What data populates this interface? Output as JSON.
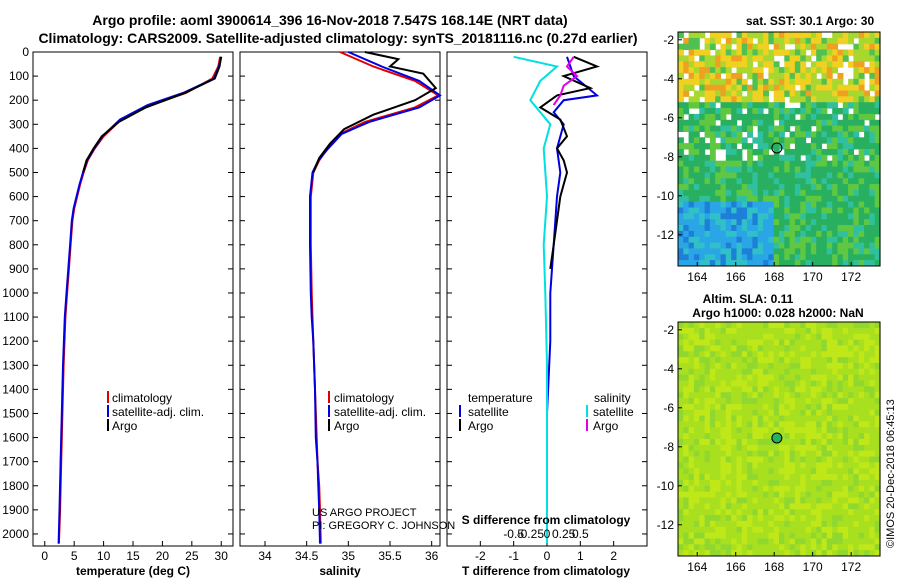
{
  "header": {
    "title_line1": "Argo profile: aoml 3900614_396 16-Nov-2018 7.547S 168.14E (NRT data)",
    "title_line2": "Climatology: CARS2009. Satellite-adjusted climatology: synTS_20181116.nc (0.27d earlier)"
  },
  "colors": {
    "climatology": "#e00000",
    "satellite": "#0000e0",
    "argo": "#000000",
    "sat_salinity": "#00e0e0",
    "argo_salinity": "#e000e0"
  },
  "credit": {
    "project": "US ARGO PROJECT",
    "pi": "PI: GREGORY C. JOHNSON"
  },
  "stamp": "©IMOS 20-Dec-2018 06:45:13",
  "chart_data": [
    {
      "id": "temperature",
      "type": "line",
      "xlabel": "temperature (deg C)",
      "ylabel": "",
      "xlim": [
        -2,
        32
      ],
      "ylim": [
        2050,
        0
      ],
      "xticks": [
        0,
        5,
        10,
        15,
        20,
        25,
        30
      ],
      "yticks": [
        0,
        100,
        200,
        300,
        400,
        500,
        600,
        700,
        800,
        900,
        1000,
        1100,
        1200,
        1300,
        1400,
        1500,
        1600,
        1700,
        1800,
        1900,
        2000
      ],
      "legend": [
        "climatology",
        "satellite-adj. clim.",
        "Argo"
      ],
      "series": [
        {
          "name": "climatology",
          "color": "#e00000",
          "x": [
            29.8,
            29.5,
            28.5,
            24,
            18,
            13,
            10,
            8.5,
            7.3,
            6.6,
            6,
            5.5,
            5,
            4.7,
            4.4,
            4.1,
            3.8,
            3.5,
            3.2,
            3,
            2.8,
            2.6,
            2.4
          ],
          "y": [
            20,
            60,
            110,
            170,
            220,
            280,
            350,
            400,
            450,
            500,
            550,
            600,
            650,
            700,
            800,
            900,
            1000,
            1100,
            1300,
            1500,
            1700,
            1900,
            2040
          ]
        },
        {
          "name": "satellite",
          "color": "#0000e0",
          "x": [
            30,
            29.6,
            28.8,
            23.5,
            17.5,
            12.8,
            9.8,
            8.4,
            7.2,
            6.5,
            5.9,
            5.4,
            4.9,
            4.6,
            4.3,
            4,
            3.7,
            3.4,
            3.1,
            2.9,
            2.7,
            2.5,
            2.35
          ],
          "y": [
            20,
            60,
            110,
            170,
            220,
            280,
            350,
            400,
            450,
            500,
            550,
            600,
            650,
            700,
            800,
            900,
            1000,
            1100,
            1300,
            1500,
            1700,
            1900,
            2040
          ]
        },
        {
          "name": "Argo",
          "color": "#000000",
          "x": [
            30,
            29.7,
            28.9,
            23.8,
            17.2,
            12.6,
            9.7,
            8.3,
            7.1,
            6.5
          ],
          "y": [
            20,
            60,
            110,
            170,
            230,
            290,
            350,
            400,
            450,
            500
          ]
        }
      ]
    },
    {
      "id": "salinity",
      "type": "line",
      "xlabel": "salinity",
      "ylabel": "",
      "xlim": [
        33.7,
        36.1
      ],
      "ylim": [
        2050,
        0
      ],
      "xticks": [
        34,
        34.5,
        35,
        35.5,
        36
      ],
      "xtick_labels": [
        "34",
        "34.5",
        "35",
        "35.5",
        "36"
      ],
      "legend": [
        "climatology",
        "satellite-adj. clim.",
        "Argo"
      ],
      "series": [
        {
          "name": "climatology",
          "color": "#e00000",
          "x": [
            34.9,
            35.3,
            35.8,
            36.08,
            35.8,
            35.2,
            34.9,
            34.75,
            34.65,
            34.58,
            34.55,
            34.55,
            34.56,
            34.57,
            34.58,
            34.6,
            34.62,
            34.63,
            34.65,
            34.66,
            34.67
          ],
          "y": [
            0,
            60,
            120,
            180,
            230,
            290,
            340,
            400,
            450,
            500,
            600,
            800,
            1000,
            1100,
            1200,
            1400,
            1600,
            1700,
            1800,
            1900,
            2040
          ]
        },
        {
          "name": "satellite",
          "color": "#0000e0",
          "x": [
            35.0,
            35.4,
            35.85,
            36.1,
            35.85,
            35.25,
            34.92,
            34.76,
            34.64,
            34.57,
            34.54,
            34.54,
            34.55,
            34.56,
            34.58,
            34.6,
            34.61,
            34.63,
            34.64,
            34.65,
            34.66
          ],
          "y": [
            0,
            60,
            120,
            180,
            230,
            290,
            340,
            400,
            450,
            500,
            600,
            800,
            1000,
            1100,
            1200,
            1400,
            1600,
            1700,
            1800,
            1900,
            2040
          ]
        },
        {
          "name": "Argo",
          "color": "#000000",
          "x": [
            35.2,
            35.6,
            35.5,
            35.9,
            36.05,
            35.8,
            35.3,
            34.95,
            34.78,
            34.65,
            34.58
          ],
          "y": [
            0,
            30,
            60,
            90,
            150,
            200,
            260,
            320,
            380,
            440,
            500
          ]
        }
      ]
    },
    {
      "id": "difference",
      "type": "line",
      "xlabel": "T difference from climatology",
      "xlabel2": "S difference from climatology",
      "xlim": [
        -3,
        3
      ],
      "ylim": [
        2050,
        0
      ],
      "xticks": [
        -2,
        -1,
        0,
        1,
        2
      ],
      "xticks_s": [
        -0.5,
        -0.25,
        0,
        0.25,
        0.5
      ],
      "xtick_labels_s": [
        "-0.5",
        "-0.25",
        "0",
        "0.25",
        "0.5"
      ],
      "legend_temperature": {
        "title": "temperature",
        "items": [
          "satellite",
          "Argo"
        ]
      },
      "legend_salinity": {
        "title": "salinity",
        "items": [
          "satellite",
          "Argo"
        ]
      },
      "series": [
        {
          "name": "T satellite",
          "color": "#0000e0",
          "x": [
            0.6,
            0.8,
            1.5,
            0.5,
            0.2,
            0.5,
            0.3,
            0.4,
            0.3,
            0.2,
            0.1,
            0.1,
            0.0,
            0.0,
            0.0
          ],
          "y": [
            20,
            100,
            180,
            200,
            250,
            300,
            400,
            500,
            600,
            800,
            1000,
            1200,
            1500,
            1800,
            2040
          ]
        },
        {
          "name": "T Argo",
          "color": "#000000",
          "x": [
            0.8,
            1.5,
            0.5,
            1.3,
            0.3,
            -0.2,
            0.4,
            0.6,
            0.3,
            0.5,
            0.6,
            0.4,
            0.3,
            0.2,
            0.1
          ],
          "y": [
            20,
            60,
            100,
            150,
            180,
            230,
            280,
            350,
            400,
            450,
            500,
            600,
            700,
            800,
            900
          ]
        },
        {
          "name": "S satellite",
          "color": "#00e0e0",
          "x": [
            -1.0,
            0.3,
            -0.2,
            -0.5,
            0.1,
            -0.1,
            0.0,
            -0.1,
            -0.05,
            0.0,
            0.0,
            0.0
          ],
          "y": [
            20,
            60,
            120,
            200,
            300,
            400,
            600,
            800,
            1000,
            1300,
            1600,
            2040
          ]
        },
        {
          "name": "S Argo",
          "color": "#e000e0",
          "x": [
            0.8,
            0.6,
            0.9,
            0.5,
            0.4,
            0.2
          ],
          "y": [
            20,
            60,
            100,
            140,
            180,
            220
          ]
        }
      ]
    },
    {
      "id": "sst_map",
      "type": "heatmap",
      "title": "sat. SST: 30.1 Argo: 30",
      "xlim": [
        163,
        173.5
      ],
      "ylim": [
        -13.6,
        -1.6
      ],
      "xticks": [
        164,
        166,
        168,
        170,
        172
      ],
      "yticks": [
        -2,
        -4,
        -6,
        -8,
        -10,
        -12
      ],
      "marker": {
        "lon": 168.14,
        "lat": -7.547
      }
    },
    {
      "id": "sla_map",
      "type": "heatmap",
      "title_line1": "Altim. SLA: 0.11",
      "title_line2": "Argo h1000: 0.028 h2000: NaN",
      "xlim": [
        163,
        173.5
      ],
      "ylim": [
        -13.6,
        -1.6
      ],
      "xticks": [
        164,
        166,
        168,
        170,
        172
      ],
      "yticks": [
        -2,
        -4,
        -6,
        -8,
        -10,
        -12
      ],
      "marker": {
        "lon": 168.14,
        "lat": -7.547
      }
    }
  ]
}
